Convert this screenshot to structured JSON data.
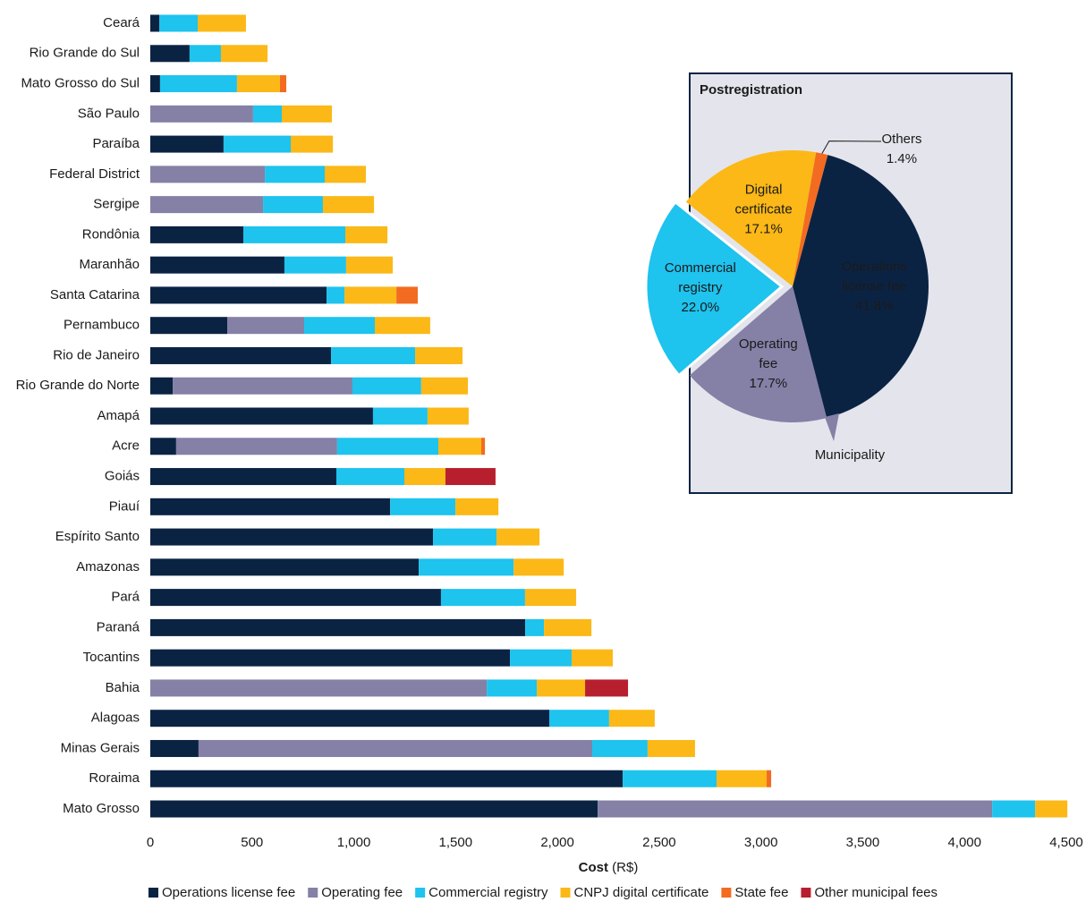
{
  "chart_data": [
    {
      "type": "stacked-barh",
      "categories": [
        "Ceará",
        "Rio Grande do Sul",
        "Mato Grosso do Sul",
        "São Paulo",
        "Paraíba",
        "Federal District",
        "Sergipe",
        "Rondônia",
        "Maranhão",
        "Santa Catarina",
        "Pernambuco",
        "Rio de Janeiro",
        "Rio Grande do Norte",
        "Amapá",
        "Acre",
        "Goiás",
        "Piauí",
        "Espírito Santo",
        "Amazonas",
        "Pará",
        "Paraná",
        "Tocantins",
        "Bahia",
        "Alagoas",
        "Minas Gerais",
        "Roraima",
        "Mato Grosso"
      ],
      "series": [
        {
          "name": "Operations license fee",
          "color": "#0b2343",
          "values": [
            44,
            193,
            48,
            0,
            360,
            0,
            0,
            457,
            659,
            866,
            378,
            888,
            110,
            1094,
            127,
            914,
            1178,
            1389,
            1319,
            1428,
            1842,
            1767,
            0,
            1960,
            237,
            2321,
            2198
          ]
        },
        {
          "name": "Operating fee",
          "color": "#8480a6",
          "values": [
            0,
            0,
            0,
            505,
            0,
            563,
            554,
            0,
            0,
            0,
            378,
            0,
            883,
            0,
            791,
            0,
            0,
            0,
            0,
            0,
            0,
            0,
            1653,
            0,
            1934,
            0,
            1938
          ]
        },
        {
          "name": "Commercial registry",
          "color": "#1ec3ee",
          "values": [
            189,
            154,
            378,
            141,
            330,
            294,
            294,
            501,
            303,
            88,
            347,
            413,
            338,
            268,
            497,
            334,
            321,
            312,
            466,
            413,
            92,
            303,
            246,
            294,
            272,
            461,
            211
          ]
        },
        {
          "name": "CNPJ digital certificate",
          "color": "#fbb817",
          "values": [
            237,
            229,
            211,
            246,
            207,
            202,
            251,
            207,
            229,
            255,
            272,
            233,
            229,
            202,
            211,
            202,
            211,
            211,
            246,
            251,
            233,
            202,
            237,
            224,
            233,
            246,
            158
          ]
        },
        {
          "name": "State fee",
          "color": "#f26b21",
          "values": [
            0,
            0,
            31,
            0,
            0,
            0,
            0,
            0,
            0,
            105,
            0,
            0,
            0,
            0,
            18,
            0,
            0,
            0,
            0,
            0,
            0,
            0,
            0,
            0,
            0,
            22,
            0
          ]
        },
        {
          "name": "Other municipal fees",
          "color": "#b81f2e",
          "values": [
            0,
            0,
            0,
            0,
            0,
            0,
            0,
            0,
            0,
            0,
            0,
            0,
            0,
            0,
            0,
            246,
            0,
            0,
            0,
            0,
            0,
            0,
            211,
            0,
            0,
            0,
            0
          ]
        }
      ],
      "xlim": [
        0,
        4500
      ],
      "xticks": [
        0,
        500,
        {
          "value": 1000,
          "label": "1,000"
        },
        {
          "value": 1500,
          "label": "1,500"
        },
        {
          "value": 2000,
          "label": "2,000"
        },
        {
          "value": 2500,
          "label": "2,500"
        },
        {
          "value": 3000,
          "label": "3,000"
        },
        {
          "value": 3500,
          "label": "3,500"
        },
        {
          "value": 4000,
          "label": "4,000"
        },
        {
          "value": 4500,
          "label": "4,500"
        }
      ],
      "x_label": {
        "text": "Cost",
        "unit": "(R$)"
      },
      "legend": "bottom"
    },
    {
      "type": "pie",
      "title": "Postregistration",
      "labels": [
        [
          "Operations",
          "license fee"
        ],
        [
          "Operating",
          "fee"
        ],
        [
          "Commercial",
          "registry"
        ],
        [
          "Digital",
          "certificate"
        ],
        [
          "Others"
        ]
      ],
      "values": [
        41.8,
        17.7,
        22.0,
        17.1,
        1.4
      ],
      "value_labels": [
        "41.8%",
        "17.7%",
        "22.0%",
        "17.1%",
        "1.4%"
      ],
      "colors": [
        "#0b2343",
        "#8480a6",
        "#1ec3ee",
        "#fbb817",
        "#f26b21"
      ],
      "exploded": [
        2
      ],
      "annotation": "Municipality"
    }
  ]
}
